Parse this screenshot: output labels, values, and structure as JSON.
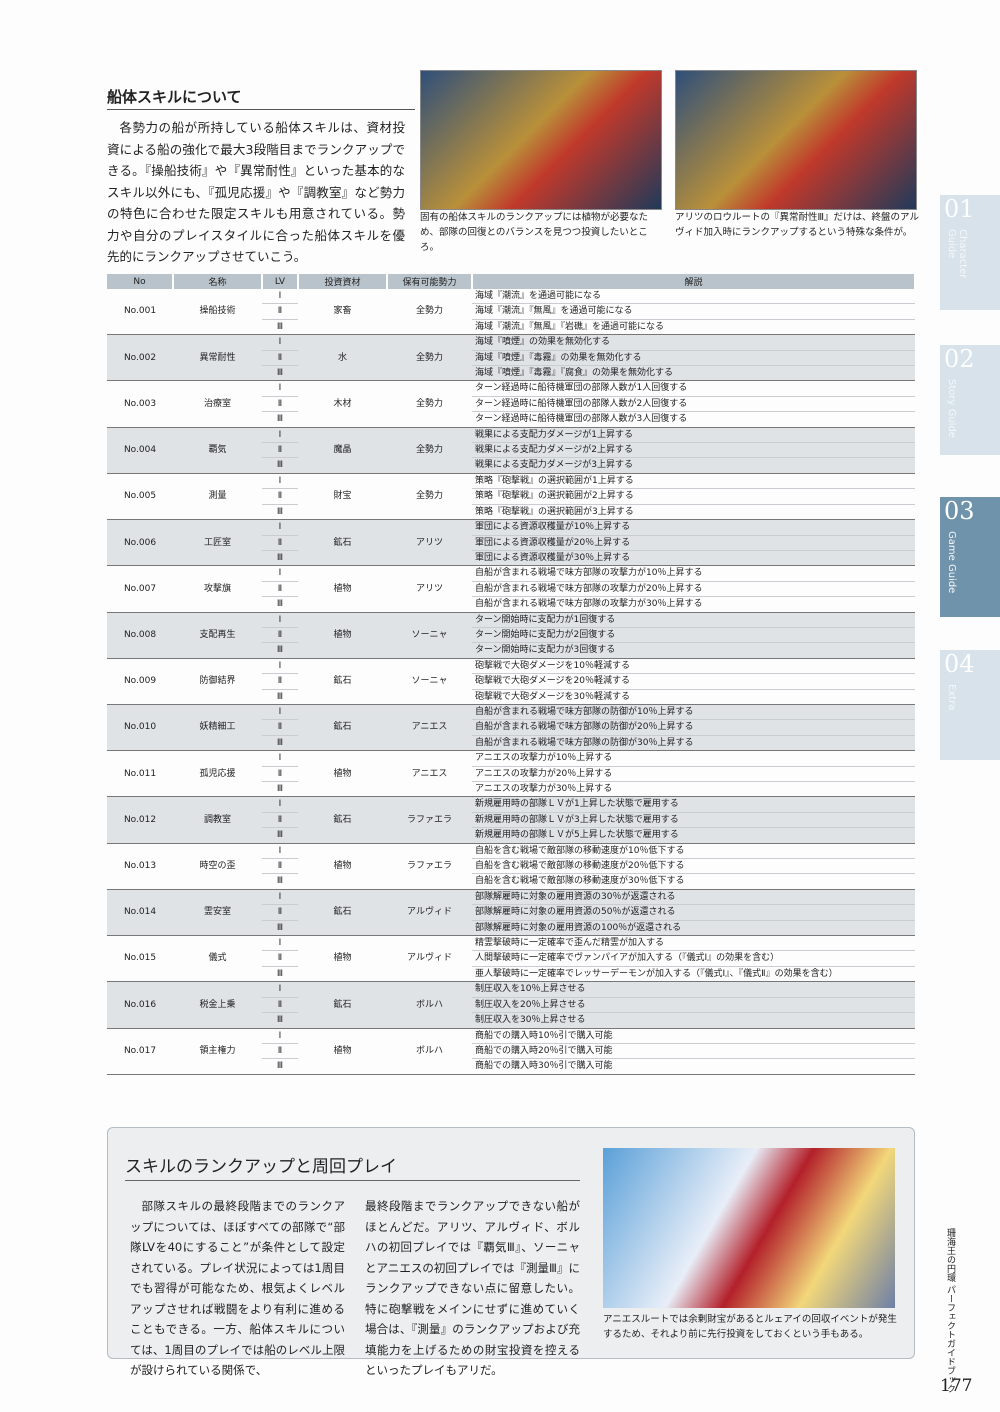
{
  "section": {
    "title": "船体スキルについて",
    "body": "各勢力の船が所持している船体スキルは、資材投資による船の強化で最大3段階目までランクアップできる。『操船技術』や『異常耐性』といった基本的なスキル以外にも、『孤児応援』や『調教室』など勢力の特色に合わせた限定スキルも用意されている。勢力や自分のプレイスタイルに合った船体スキルを優先的にランクアップさせていこう。"
  },
  "screenshots": [
    {
      "caption": "固有の船体スキルのランクアップには植物が必要なため、部隊の回復とのバランスを見つつ投資したいところ。"
    },
    {
      "caption": "アリツのロウルートの『異常耐性Ⅲ』だけは、終盤のアルヴィド加入時にランクアップするという特殊な条件が。"
    }
  ],
  "table": {
    "headers": [
      "No",
      "名称",
      "LV",
      "投資資材",
      "保有可能勢力",
      "解説"
    ],
    "rows": [
      {
        "no": "No.001",
        "name": "操船技術",
        "levels": [
          "Ⅰ",
          "Ⅱ",
          "Ⅲ"
        ],
        "material": "家畜",
        "faction": "全勢力",
        "descriptions": [
          "海域『潮流』を通過可能になる",
          "海域『潮流』『無風』を通過可能になる",
          "海域『潮流』『無風』『岩礁』を通過可能になる"
        ]
      },
      {
        "no": "No.002",
        "name": "異常耐性",
        "levels": [
          "Ⅰ",
          "Ⅱ",
          "Ⅲ"
        ],
        "material": "水",
        "faction": "全勢力",
        "descriptions": [
          "海域『噴煙』の効果を無効化する",
          "海域『噴煙』『毒霧』の効果を無効化する",
          "海域『噴煙』『毒霧』『腐食』の効果を無効化する"
        ]
      },
      {
        "no": "No.003",
        "name": "治療室",
        "levels": [
          "Ⅰ",
          "Ⅱ",
          "Ⅲ"
        ],
        "material": "木材",
        "faction": "全勢力",
        "descriptions": [
          "ターン経過時に船待機軍団の部隊人数が1人回復する",
          "ターン経過時に船待機軍団の部隊人数が2人回復する",
          "ターン経過時に船待機軍団の部隊人数が3人回復する"
        ]
      },
      {
        "no": "No.004",
        "name": "覇気",
        "levels": [
          "Ⅰ",
          "Ⅱ",
          "Ⅲ"
        ],
        "material": "魔晶",
        "faction": "全勢力",
        "descriptions": [
          "戦果による支配力ダメージが1上昇する",
          "戦果による支配力ダメージが2上昇する",
          "戦果による支配力ダメージが3上昇する"
        ]
      },
      {
        "no": "No.005",
        "name": "測量",
        "levels": [
          "Ⅰ",
          "Ⅱ",
          "Ⅲ"
        ],
        "material": "財宝",
        "faction": "全勢力",
        "descriptions": [
          "策略『砲撃戦』の選択範囲が1上昇する",
          "策略『砲撃戦』の選択範囲が2上昇する",
          "策略『砲撃戦』の選択範囲が3上昇する"
        ]
      },
      {
        "no": "No.006",
        "name": "工匠室",
        "levels": [
          "Ⅰ",
          "Ⅱ",
          "Ⅲ"
        ],
        "material": "鉱石",
        "faction": "アリツ",
        "descriptions": [
          "軍団による資源収穫量が10％上昇する",
          "軍団による資源収穫量が20％上昇する",
          "軍団による資源収穫量が30％上昇する"
        ]
      },
      {
        "no": "No.007",
        "name": "攻撃旗",
        "levels": [
          "Ⅰ",
          "Ⅱ",
          "Ⅲ"
        ],
        "material": "植物",
        "faction": "アリツ",
        "descriptions": [
          "自船が含まれる戦場で味方部隊の攻撃力が10％上昇する",
          "自船が含まれる戦場で味方部隊の攻撃力が20％上昇する",
          "自船が含まれる戦場で味方部隊の攻撃力が30％上昇する"
        ]
      },
      {
        "no": "No.008",
        "name": "支配再生",
        "levels": [
          "Ⅰ",
          "Ⅱ",
          "Ⅲ"
        ],
        "material": "植物",
        "faction": "ソーニャ",
        "descriptions": [
          "ターン開始時に支配力が1回復する",
          "ターン開始時に支配力が2回復する",
          "ターン開始時に支配力が3回復する"
        ]
      },
      {
        "no": "No.009",
        "name": "防御結界",
        "levels": [
          "Ⅰ",
          "Ⅱ",
          "Ⅲ"
        ],
        "material": "鉱石",
        "faction": "ソーニャ",
        "descriptions": [
          "砲撃戦で大砲ダメージを10％軽減する",
          "砲撃戦で大砲ダメージを20％軽減する",
          "砲撃戦で大砲ダメージを30％軽減する"
        ]
      },
      {
        "no": "No.010",
        "name": "妖精細工",
        "levels": [
          "Ⅰ",
          "Ⅱ",
          "Ⅲ"
        ],
        "material": "鉱石",
        "faction": "アニエス",
        "descriptions": [
          "自船が含まれる戦場で味方部隊の防御が10％上昇する",
          "自船が含まれる戦場で味方部隊の防御が20％上昇する",
          "自船が含まれる戦場で味方部隊の防御が30％上昇する"
        ]
      },
      {
        "no": "No.011",
        "name": "孤児応援",
        "levels": [
          "Ⅰ",
          "Ⅱ",
          "Ⅲ"
        ],
        "material": "植物",
        "faction": "アニエス",
        "descriptions": [
          "アニエスの攻撃力が10％上昇する",
          "アニエスの攻撃力が20％上昇する",
          "アニエスの攻撃力が30％上昇する"
        ]
      },
      {
        "no": "No.012",
        "name": "調教室",
        "levels": [
          "Ⅰ",
          "Ⅱ",
          "Ⅲ"
        ],
        "material": "鉱石",
        "faction": "ラファエラ",
        "descriptions": [
          "新規雇用時の部隊ＬＶが1上昇した状態で雇用する",
          "新規雇用時の部隊ＬＶが3上昇した状態で雇用する",
          "新規雇用時の部隊ＬＶが5上昇した状態で雇用する"
        ]
      },
      {
        "no": "No.013",
        "name": "時空の歪",
        "levels": [
          "Ⅰ",
          "Ⅱ",
          "Ⅲ"
        ],
        "material": "植物",
        "faction": "ラファエラ",
        "descriptions": [
          "自船を含む戦場で敵部隊の移動速度が10％低下する",
          "自船を含む戦場で敵部隊の移動速度が20％低下する",
          "自船を含む戦場で敵部隊の移動速度が30％低下する"
        ]
      },
      {
        "no": "No.014",
        "name": "霊安室",
        "levels": [
          "Ⅰ",
          "Ⅱ",
          "Ⅲ"
        ],
        "material": "鉱石",
        "faction": "アルヴィド",
        "descriptions": [
          "部隊解雇時に対象の雇用資源の30％が返還される",
          "部隊解雇時に対象の雇用資源の50％が返還される",
          "部隊解雇時に対象の雇用資源の100％が返還される"
        ]
      },
      {
        "no": "No.015",
        "name": "儀式",
        "levels": [
          "Ⅰ",
          "Ⅱ",
          "Ⅲ"
        ],
        "material": "植物",
        "faction": "アルヴィド",
        "descriptions": [
          "精霊撃破時に一定確率で歪んだ精霊が加入する",
          "人間撃破時に一定確率でヴァンパイアが加入する（『儀式Ⅰ』の効果を含む）",
          "亜人撃破時に一定確率でレッサーデーモンが加入する（『儀式Ⅰ』、『儀式Ⅱ』の効果を含む）"
        ]
      },
      {
        "no": "No.016",
        "name": "税金上乗",
        "levels": [
          "Ⅰ",
          "Ⅱ",
          "Ⅲ"
        ],
        "material": "鉱石",
        "faction": "ボルハ",
        "descriptions": [
          "制圧収入を10％上昇させる",
          "制圧収入を20％上昇させる",
          "制圧収入を30％上昇させる"
        ]
      },
      {
        "no": "No.017",
        "name": "領主権力",
        "levels": [
          "Ⅰ",
          "Ⅱ",
          "Ⅲ"
        ],
        "material": "植物",
        "faction": "ボルハ",
        "descriptions": [
          "商船での購入時10％引で購入可能",
          "商船での購入時20％引で購入可能",
          "商船での購入時30％引で購入可能"
        ]
      }
    ]
  },
  "tabs": [
    {
      "number": "01",
      "label": "Character Guide"
    },
    {
      "number": "02",
      "label": "Story Guide"
    },
    {
      "number": "03",
      "label": "Game Guide"
    },
    {
      "number": "04",
      "label": "Extra"
    }
  ],
  "column": {
    "title": "スキルのランクアップと周回プレイ",
    "paragraphs": [
      "部隊スキルの最終段階までのランクアップについては、ほぼすべての部隊で“部隊LVを40にすること”が条件として設定されている。プレイ状況によっては1周目でも習得が可能なため、根気よくレベルアップさせれば戦闘をより有利に進めることもできる。一方、船体スキルについては、1周目のプレイでは船のレベル上限が設けられている関係で、",
      "最終段階までランクアップできない船がほとんどだ。アリツ、アルヴィド、ボルハの初回プレイでは『覇気Ⅲ』、ソーニャとアニエスの初回プレイでは『測量Ⅲ』にランクアップできない点に留意したい。特に砲撃戦をメインにせずに進めていく場合は、『測量』のランクアップおよび充填能力を上げるための財宝投資を控えるといったプレイもアリだ。"
    ],
    "caption": "アニエスルートでは余剰財宝があるとルェアイの回収イベントが発生するため、それより前に先行投資をしておくという手もある。"
  },
  "footer": {
    "book_title": "珊海王の円環 パーフェクトガイドブック",
    "page_number": "177"
  }
}
